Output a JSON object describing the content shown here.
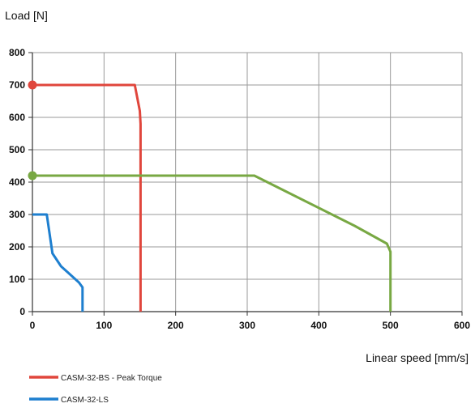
{
  "chart_data": {
    "type": "line",
    "xlabel": "Linear speed [mm/s]",
    "ylabel": "Load [N]",
    "xlim": [
      0,
      600
    ],
    "ylim": [
      0,
      800
    ],
    "x_ticks": [
      "0",
      "100",
      "200",
      "300",
      "400",
      "500",
      "600"
    ],
    "y_ticks": [
      "0",
      "100",
      "200",
      "300",
      "400",
      "500",
      "600",
      "700",
      "800"
    ],
    "grid": true,
    "legend_position": "bottom-left",
    "series": [
      {
        "name": "CASM-32-BS - Peak Torque",
        "color": "#e0463c",
        "x": [
          0,
          143,
          150,
          151,
          151
        ],
        "y": [
          700,
          700,
          620,
          580,
          0
        ],
        "start_marker": true
      },
      {
        "name": "CASM-32-LS",
        "color": "#1e7fcf",
        "x": [
          0,
          20,
          28,
          40,
          50,
          65,
          70,
          70
        ],
        "y": [
          300,
          300,
          180,
          140,
          120,
          90,
          75,
          0
        ],
        "start_marker": false
      },
      {
        "name": "",
        "color": "#78a843",
        "x": [
          0,
          310,
          450,
          495,
          500,
          500
        ],
        "y": [
          420,
          420,
          265,
          210,
          185,
          0
        ],
        "start_marker": true
      }
    ]
  }
}
